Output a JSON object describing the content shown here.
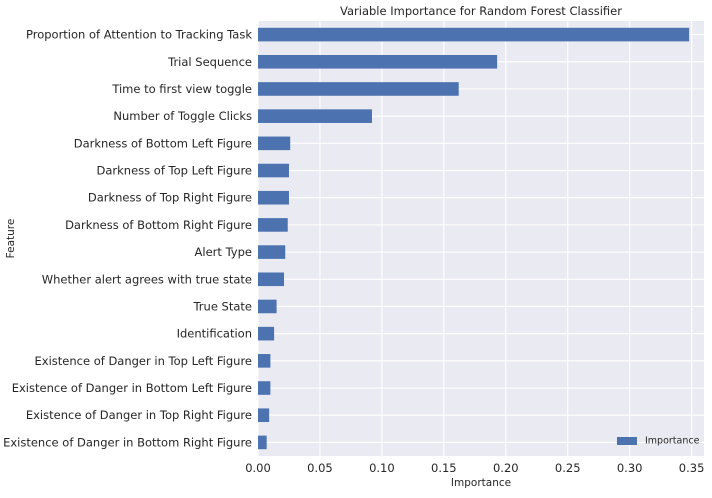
{
  "chart_data": {
    "type": "bar",
    "orientation": "horizontal",
    "title": "Variable Importance for Random Forest Classifier",
    "xlabel": "Importance",
    "ylabel": "Feature",
    "xlim": [
      0,
      0.36
    ],
    "xticks": [
      0.0,
      0.05,
      0.1,
      0.15,
      0.2,
      0.25,
      0.3,
      0.35
    ],
    "xtick_labels": [
      "0.00",
      "0.05",
      "0.10",
      "0.15",
      "0.20",
      "0.25",
      "0.30",
      "0.35"
    ],
    "grid": true,
    "legend_position": "bottom-right",
    "categories": [
      "Proportion of Attention to Tracking Task",
      "Trial Sequence",
      "Time to first view toggle",
      "Number of Toggle Clicks",
      "Darkness of Bottom Left Figure",
      "Darkness of Top Left Figure",
      "Darkness of Top Right Figure",
      "Darkness of Bottom Right Figure",
      "Alert Type",
      "Whether alert agrees with true state",
      "True State",
      "Identification",
      "Existence of Danger in Top Left Figure",
      "Existence of Danger in Bottom Left Figure",
      "Existence of Danger in Top Right Figure",
      "Existence of Danger in Bottom Right Figure"
    ],
    "series": [
      {
        "name": "Importance",
        "color": "#4c72b0",
        "values": [
          0.348,
          0.193,
          0.162,
          0.092,
          0.026,
          0.025,
          0.025,
          0.024,
          0.022,
          0.021,
          0.015,
          0.013,
          0.01,
          0.01,
          0.009,
          0.007
        ]
      }
    ]
  },
  "colors": {
    "plot_background": "#eaeaf2",
    "grid": "#ffffff",
    "bar": "#4c72b0",
    "text": "#262626"
  }
}
